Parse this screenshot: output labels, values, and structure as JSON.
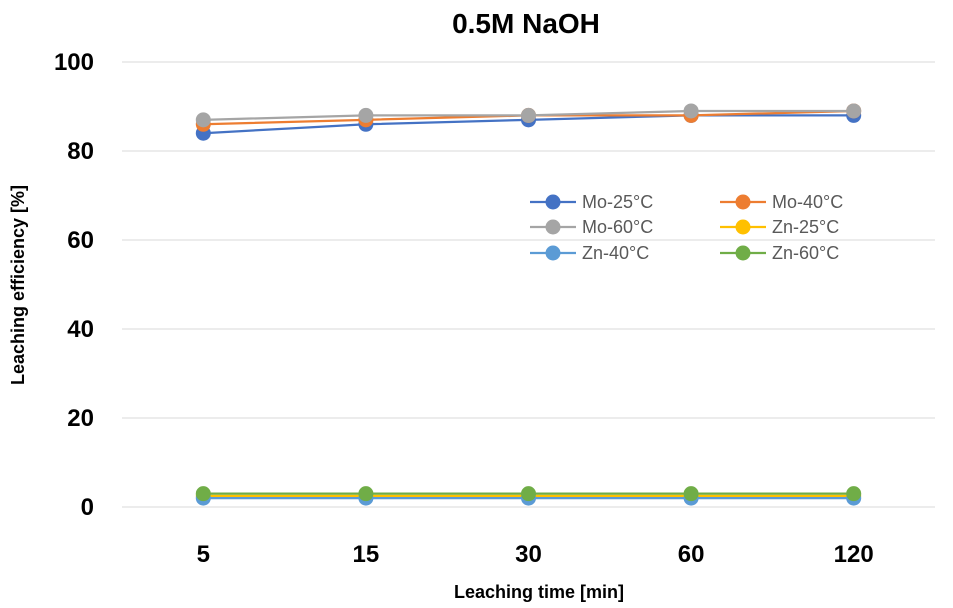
{
  "chart_data": {
    "type": "line",
    "title": "0.5M NaOH",
    "xlabel": "Leaching time [min]",
    "ylabel": "Leaching efficiency [%]",
    "categories": [
      "5",
      "15",
      "30",
      "60",
      "120"
    ],
    "ylim": [
      0,
      100
    ],
    "yticks": [
      0,
      20,
      40,
      60,
      80,
      100
    ],
    "grid": "horizontal",
    "legend_position": "right-center",
    "series": [
      {
        "name": "Mo-25°C",
        "color": "#4472C4",
        "values": [
          84,
          86,
          87,
          88,
          88
        ]
      },
      {
        "name": "Mo-40°C",
        "color": "#ED7D31",
        "values": [
          86,
          87,
          88,
          88,
          89
        ]
      },
      {
        "name": "Mo-60°C",
        "color": "#A5A5A5",
        "values": [
          87,
          88,
          88,
          89,
          89
        ]
      },
      {
        "name": "Zn-25°C",
        "color": "#FFC000",
        "values": [
          2.5,
          2.5,
          2.5,
          2.5,
          2.5
        ]
      },
      {
        "name": "Zn-40°C",
        "color": "#5B9BD5",
        "values": [
          2,
          2,
          2,
          2,
          2
        ]
      },
      {
        "name": "Zn-60°C",
        "color": "#70AD47",
        "values": [
          3,
          3,
          3,
          3,
          3
        ]
      }
    ]
  }
}
